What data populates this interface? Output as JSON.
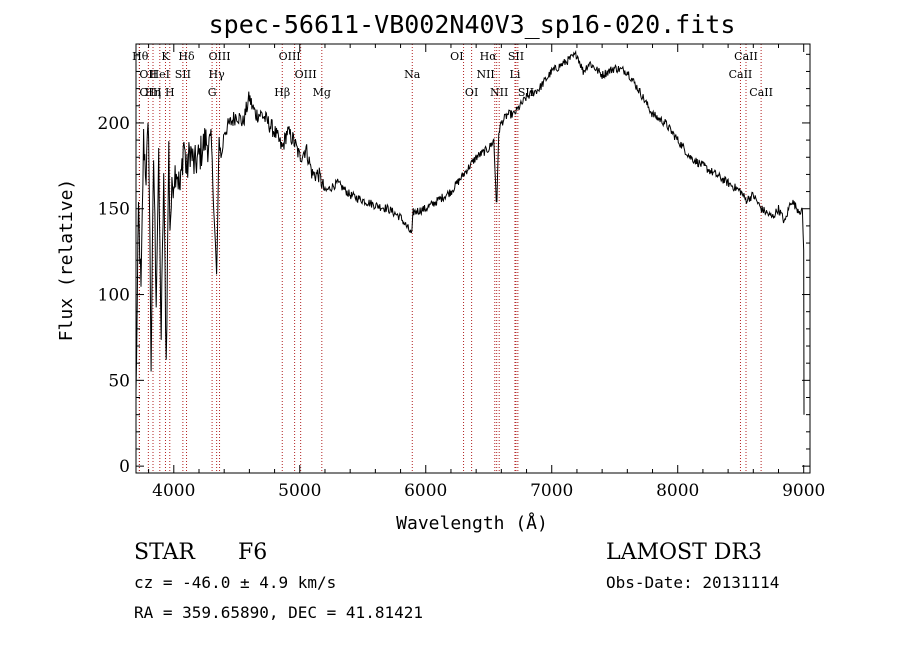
{
  "chart_data": {
    "type": "line",
    "title": "spec-56611-VB002N40V3_sp16-020.fits",
    "xlabel": "Wavelength (Å)",
    "ylabel": "Flux (relative)",
    "xlim": [
      3700,
      9050
    ],
    "ylim": [
      -4,
      246
    ],
    "xticks": [
      4000,
      5000,
      6000,
      7000,
      8000,
      9000
    ],
    "yticks": [
      0,
      50,
      100,
      150,
      200
    ],
    "series": [
      {
        "name": "flux",
        "x": [
          3700,
          3720,
          3740,
          3760,
          3780,
          3800,
          3820,
          3840,
          3860,
          3880,
          3900,
          3920,
          3940,
          3960,
          3970,
          3990,
          4020,
          4050,
          4080,
          4101,
          4130,
          4160,
          4200,
          4250,
          4300,
          4340,
          4360,
          4380,
          4400,
          4450,
          4500,
          4550,
          4600,
          4620,
          4650,
          4700,
          4750,
          4800,
          4861,
          4900,
          4950,
          5000,
          5050,
          5100,
          5150,
          5200,
          5300,
          5400,
          5500,
          5600,
          5700,
          5800,
          5890,
          5900,
          6000,
          6100,
          6200,
          6300,
          6400,
          6500,
          6540,
          6563,
          6580,
          6600,
          6650,
          6700,
          6800,
          6900,
          7000,
          7100,
          7200,
          7250,
          7300,
          7400,
          7500,
          7600,
          7700,
          7800,
          7900,
          8000,
          8100,
          8200,
          8300,
          8400,
          8500,
          8542,
          8600,
          8662,
          8700,
          8750,
          8800,
          8850,
          8900,
          8950,
          8990,
          9000
        ],
        "y": [
          40,
          150,
          100,
          190,
          170,
          200,
          60,
          180,
          100,
          175,
          75,
          170,
          60,
          185,
          140,
          165,
          175,
          160,
          190,
          170,
          185,
          175,
          180,
          190,
          185,
          110,
          190,
          180,
          195,
          200,
          205,
          200,
          215,
          210,
          205,
          205,
          200,
          195,
          185,
          195,
          190,
          180,
          185,
          170,
          170,
          160,
          165,
          158,
          155,
          152,
          150,
          145,
          135,
          148,
          150,
          155,
          160,
          170,
          180,
          185,
          190,
          150,
          195,
          200,
          205,
          205,
          215,
          220,
          230,
          235,
          240,
          230,
          235,
          228,
          232,
          230,
          218,
          205,
          200,
          190,
          180,
          175,
          170,
          165,
          160,
          155,
          158,
          150,
          148,
          145,
          150,
          142,
          155,
          150,
          148,
          125
        ]
      }
    ],
    "line_markers": [
      {
        "label": "Hθ",
        "x": 3798,
        "row": 0,
        "anchor": "end"
      },
      {
        "label": "K",
        "x": 3934,
        "row": 0,
        "anchor": "middle"
      },
      {
        "label": "Hδ",
        "x": 4101,
        "row": 0,
        "anchor": "middle"
      },
      {
        "label": "OIII",
        "x": 4363,
        "row": 0,
        "anchor": "middle"
      },
      {
        "label": "OIII",
        "x": 5007,
        "row": 0,
        "anchor": "end"
      },
      {
        "label": "OI",
        "x": 6300,
        "row": 0,
        "anchor": "end"
      },
      {
        "label": "Hα",
        "x": 6563,
        "row": 0,
        "anchor": "end"
      },
      {
        "label": "SII",
        "x": 6716,
        "row": 0,
        "anchor": "middle"
      },
      {
        "label": "CaII",
        "x": 8542,
        "row": 0,
        "anchor": "middle"
      },
      {
        "label": "OII",
        "x": 3727,
        "row": 1,
        "anchor": "start"
      },
      {
        "label": "HeI",
        "x": 3889,
        "row": 1,
        "anchor": "middle"
      },
      {
        "label": "SII",
        "x": 4072,
        "row": 1,
        "anchor": "middle"
      },
      {
        "label": "Hγ",
        "x": 4340,
        "row": 1,
        "anchor": "middle"
      },
      {
        "label": "OIII",
        "x": 4959,
        "row": 1,
        "anchor": "start"
      },
      {
        "label": "Na",
        "x": 5893,
        "row": 1,
        "anchor": "middle"
      },
      {
        "label": "NII",
        "x": 6548,
        "row": 1,
        "anchor": "end"
      },
      {
        "label": "Li",
        "x": 6708,
        "row": 1,
        "anchor": "middle"
      },
      {
        "label": "CaII",
        "x": 8498,
        "row": 1,
        "anchor": "middle"
      },
      {
        "label": "OIII",
        "x": 3727,
        "row": 2,
        "anchor": "start"
      },
      {
        "label": "Hη",
        "x": 3835,
        "row": 2,
        "anchor": "middle"
      },
      {
        "label": "H",
        "x": 3968,
        "row": 2,
        "anchor": "middle"
      },
      {
        "label": "G",
        "x": 4304,
        "row": 2,
        "anchor": "middle"
      },
      {
        "label": "Hβ",
        "x": 4861,
        "row": 2,
        "anchor": "middle"
      },
      {
        "label": "Mg",
        "x": 5175,
        "row": 2,
        "anchor": "middle"
      },
      {
        "label": "OI",
        "x": 6364,
        "row": 2,
        "anchor": "middle"
      },
      {
        "label": "NII",
        "x": 6583,
        "row": 2,
        "anchor": "middle"
      },
      {
        "label": "SII",
        "x": 6731,
        "row": 2,
        "anchor": "start"
      },
      {
        "label": "CaII",
        "x": 8662,
        "row": 2,
        "anchor": "middle"
      }
    ],
    "marker_color": "#b22222"
  },
  "info": {
    "object_class": "STAR",
    "subclass": "F6",
    "survey": "LAMOST DR3",
    "redshift": "cz = -46.0 ± 4.9 km/s",
    "obs_date": "Obs-Date: 20131114",
    "coords": "RA = 359.65890, DEC =  41.81421"
  }
}
